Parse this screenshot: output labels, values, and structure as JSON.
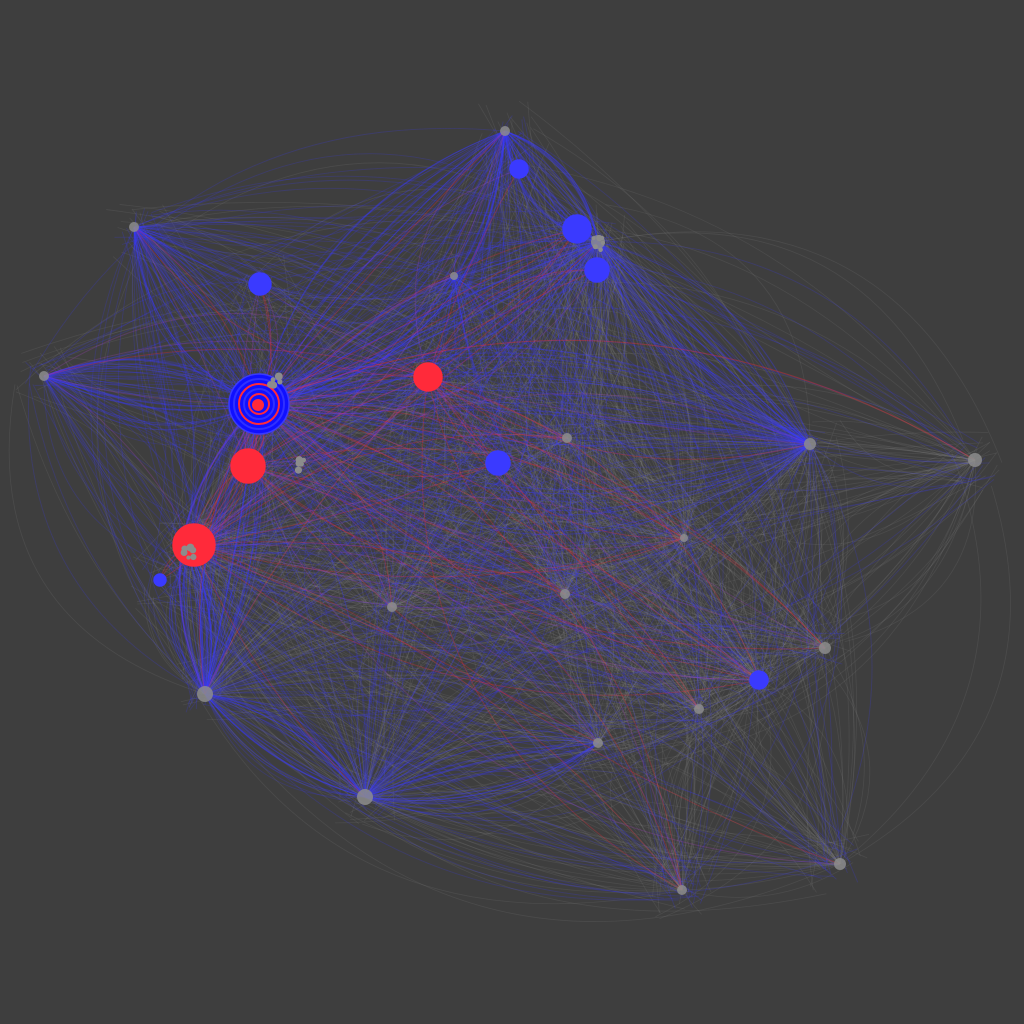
{
  "colors": {
    "background": "#3e3e3e",
    "gray": "#8c8c8c",
    "blue": "#3a3aff",
    "red": "#ff2a3a",
    "purple": "#a040c0"
  },
  "graph": {
    "background_color": "#3e3e3e",
    "node_color_legend_text": "",
    "hubs": [
      {
        "id": "hub-left-main"
      },
      {
        "id": "hub-top"
      },
      {
        "id": "hub-top-right-cluster"
      },
      {
        "id": "hub-left-top"
      },
      {
        "id": "hub-far-left"
      },
      {
        "id": "hub-left-mid"
      },
      {
        "id": "hub-bottom-left"
      },
      {
        "id": "hub-bottom-center"
      },
      {
        "id": "hub-right-mid"
      },
      {
        "id": "hub-far-right"
      },
      {
        "id": "hub-right-lower"
      },
      {
        "id": "hub-bottom-right-1"
      },
      {
        "id": "hub-bottom-right-2"
      },
      {
        "id": "hub-center-1"
      },
      {
        "id": "hub-center-2"
      },
      {
        "id": "hub-center-3"
      },
      {
        "id": "hub-center-4"
      },
      {
        "id": "hub-center-5"
      },
      {
        "id": "hub-center-6"
      },
      {
        "id": "hub-mid-left"
      },
      {
        "id": "hub-upper-center"
      }
    ],
    "highlighted_nodes": [
      {
        "id": "blue-node-1",
        "color": "blue"
      },
      {
        "id": "blue-node-2",
        "color": "blue"
      },
      {
        "id": "blue-node-3",
        "color": "blue"
      },
      {
        "id": "blue-node-4",
        "color": "blue"
      },
      {
        "id": "blue-node-5",
        "color": "blue"
      },
      {
        "id": "blue-node-6",
        "color": "blue"
      },
      {
        "id": "blue-node-7",
        "color": "blue"
      },
      {
        "id": "red-node-1",
        "color": "red"
      },
      {
        "id": "red-node-2",
        "color": "red"
      },
      {
        "id": "red-node-3",
        "color": "red"
      },
      {
        "id": "main-blue-hub",
        "color": "blue"
      }
    ]
  }
}
